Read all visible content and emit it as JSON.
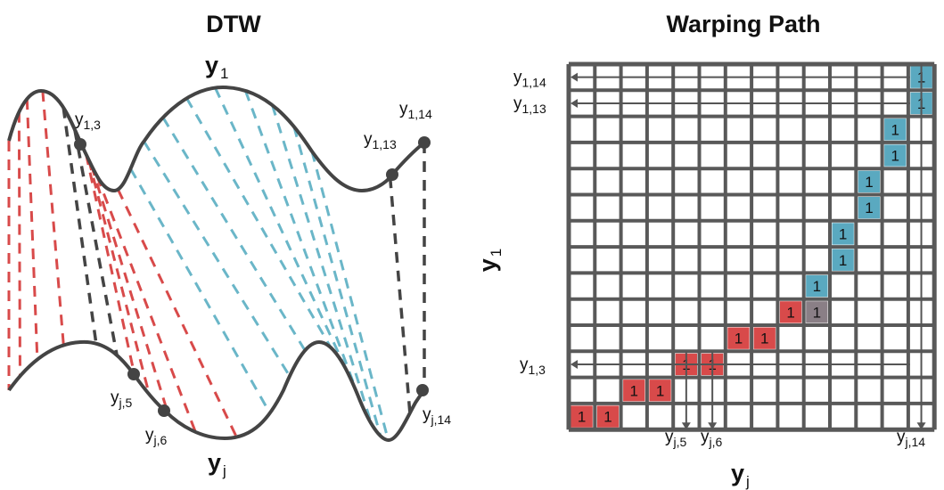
{
  "left_panel": {
    "title": "DTW",
    "top_series": {
      "main": "y",
      "sub": "1"
    },
    "bottom_series": {
      "main": "y",
      "sub": "j"
    },
    "point_labels": {
      "y13": {
        "main": "y",
        "sub": "1,3"
      },
      "y113": {
        "main": "y",
        "sub": "1,13"
      },
      "y114": {
        "main": "y",
        "sub": "1,14"
      },
      "yj5": {
        "main": "y",
        "sub": "j,5"
      },
      "yj6": {
        "main": "y",
        "sub": "j,6"
      },
      "yj14": {
        "main": "y",
        "sub": "j,14"
      }
    },
    "colors": {
      "red": "#d84a4a",
      "blue": "#6ab6c8",
      "dark": "#444444",
      "curve": "#444444"
    }
  },
  "right_panel": {
    "title": "Warping Path",
    "x_axis": {
      "main": "y",
      "sub": "j"
    },
    "y_axis": {
      "main": "y",
      "sub": "1"
    },
    "grid_size": 14,
    "cell_value": "1",
    "path_cells": [
      {
        "col": 1,
        "row": 1,
        "color": "red"
      },
      {
        "col": 2,
        "row": 1,
        "color": "red"
      },
      {
        "col": 3,
        "row": 2,
        "color": "red"
      },
      {
        "col": 4,
        "row": 2,
        "color": "red"
      },
      {
        "col": 5,
        "row": 3,
        "color": "red"
      },
      {
        "col": 6,
        "row": 3,
        "color": "red"
      },
      {
        "col": 7,
        "row": 4,
        "color": "red"
      },
      {
        "col": 8,
        "row": 4,
        "color": "red"
      },
      {
        "col": 9,
        "row": 5,
        "color": "red"
      },
      {
        "col": 10,
        "row": 5,
        "color": "gray"
      },
      {
        "col": 10,
        "row": 6,
        "color": "blue"
      },
      {
        "col": 11,
        "row": 7,
        "color": "blue"
      },
      {
        "col": 11,
        "row": 8,
        "color": "blue"
      },
      {
        "col": 12,
        "row": 9,
        "color": "blue"
      },
      {
        "col": 12,
        "row": 10,
        "color": "blue"
      },
      {
        "col": 13,
        "row": 11,
        "color": "blue"
      },
      {
        "col": 13,
        "row": 12,
        "color": "blue"
      },
      {
        "col": 14,
        "row": 13,
        "color": "blue"
      },
      {
        "col": 14,
        "row": 14,
        "color": "blue"
      }
    ],
    "row_labels": [
      {
        "row": 14,
        "main": "y",
        "sub": "1,14"
      },
      {
        "row": 13,
        "main": "y",
        "sub": "1,13"
      },
      {
        "row": 3,
        "main": "y",
        "sub": "1,3"
      }
    ],
    "col_labels": [
      {
        "col": 5,
        "main": "y",
        "sub": "j,5"
      },
      {
        "col": 6,
        "main": "y",
        "sub": "j,6"
      },
      {
        "col": 14,
        "main": "y",
        "sub": "j,14"
      }
    ],
    "colors": {
      "red": "#d84a4a",
      "blue": "#5aa9c0",
      "gray": "#8a7f86",
      "grid": "#595959"
    }
  }
}
